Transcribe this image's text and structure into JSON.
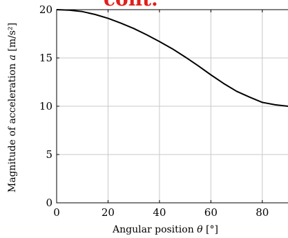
{
  "banner": {
    "text": "cont.",
    "color": "#e0201b"
  },
  "chart_data": {
    "type": "line",
    "title": "",
    "xlabel_text": "Angular position ",
    "xlabel_symbol": "θ",
    "xlabel_unit": " [°]",
    "ylabel_text": "Magnitude of acceleration ",
    "ylabel_symbol": "a",
    "ylabel_unit": " [m/s²]",
    "xlim": [
      0,
      90
    ],
    "ylim": [
      0,
      20
    ],
    "xticks": [
      0,
      20,
      40,
      60,
      80
    ],
    "yticks": [
      0,
      5,
      10,
      15,
      20
    ],
    "grid": true,
    "line_color": "#000000",
    "series": [
      {
        "x": [
          0,
          5,
          10,
          15,
          20,
          25,
          30,
          35,
          40,
          45,
          50,
          55,
          60,
          65,
          70,
          75,
          80,
          85,
          90
        ],
        "values": [
          20.0,
          19.95,
          19.8,
          19.5,
          19.1,
          18.6,
          18.05,
          17.4,
          16.7,
          15.95,
          15.1,
          14.2,
          13.25,
          12.35,
          11.55,
          10.95,
          10.4,
          10.15,
          10.0
        ]
      }
    ]
  }
}
